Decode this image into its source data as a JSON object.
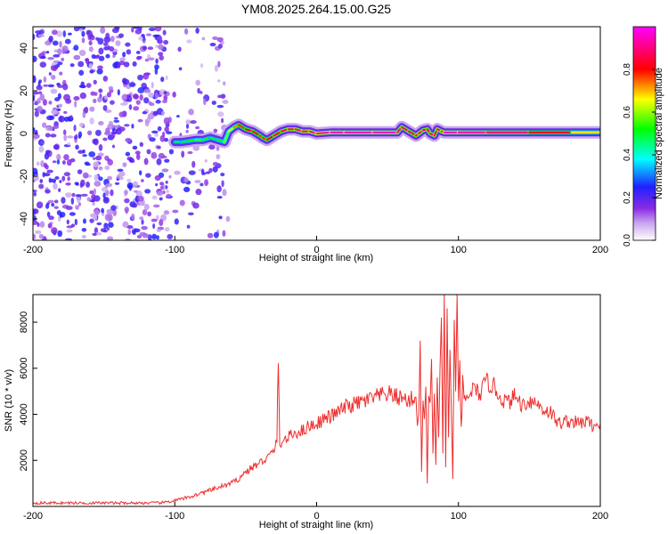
{
  "title": "YM08.2025.264.15.00.G25",
  "chart_data": [
    {
      "type": "heatmap",
      "xlabel": "Height of straight line (km)",
      "ylabel": "Frequency (Hz)",
      "xlim": [
        -200,
        200
      ],
      "ylim": [
        -50,
        50
      ],
      "xticks": [
        -200,
        -100,
        0,
        100,
        200
      ],
      "yticks": [
        -40,
        -20,
        0,
        20,
        40
      ],
      "grid": false,
      "colorbar": {
        "label": "Normalized spectral amplitude",
        "range": [
          0,
          1
        ],
        "ticks": [
          0.0,
          0.2,
          0.4,
          0.6,
          0.8
        ],
        "colormap": [
          "#ffffff",
          "#8a2be2",
          "#0000ff",
          "#00ffff",
          "#00ff00",
          "#ffff00",
          "#ff0000",
          "#ff00ff"
        ]
      },
      "ridge": {
        "x": [
          -100,
          -95,
          -90,
          -85,
          -80,
          -75,
          -70,
          -65,
          -62,
          -58,
          -55,
          -50,
          -45,
          -40,
          -38,
          -35,
          -30,
          -25,
          -20,
          -15,
          -10,
          -5,
          0,
          10,
          20,
          40,
          57,
          60,
          65,
          70,
          72,
          75,
          78,
          80,
          83,
          85,
          88,
          90,
          100,
          120,
          150,
          180,
          200
        ],
        "y": [
          -4,
          -4,
          -3.5,
          -3,
          -3,
          -2,
          -3,
          -4,
          1,
          3,
          4,
          2,
          1,
          -1,
          -2,
          -3,
          -1,
          1,
          2,
          2,
          1,
          1,
          0,
          0.5,
          0.5,
          0.5,
          0.5,
          3,
          1,
          -1,
          0,
          1.5,
          2,
          0,
          -1,
          2,
          1,
          0.5,
          0.5,
          0.5,
          0.5,
          0.5,
          0.5
        ],
        "amplitude": [
          0.45,
          0.5,
          0.5,
          0.55,
          0.55,
          0.5,
          0.5,
          0.55,
          0.6,
          0.7,
          0.75,
          0.8,
          0.85,
          0.8,
          0.75,
          0.8,
          0.85,
          0.85,
          0.9,
          0.9,
          0.9,
          0.92,
          0.95,
          0.95,
          0.95,
          0.95,
          0.95,
          0.85,
          0.9,
          0.85,
          0.9,
          0.9,
          0.85,
          0.9,
          0.85,
          0.9,
          0.9,
          0.95,
          0.95,
          0.9,
          0.85,
          0.75,
          0.6
        ]
      },
      "noise_region": {
        "x_range": [
          -200,
          -62
        ],
        "amplitude": 0.2
      }
    },
    {
      "type": "line",
      "xlabel": "Height of straight line (km)",
      "ylabel": "SNR (10 * v/v)",
      "xlim": [
        -200,
        200
      ],
      "ylim": [
        0,
        9200
      ],
      "xticks": [
        -200,
        -100,
        0,
        100,
        200
      ],
      "yticks": [
        2000,
        4000,
        6000,
        8000
      ],
      "grid": false,
      "series": [
        {
          "color": "#ee2e2e",
          "x": [
            -200,
            -150,
            -110,
            -100,
            -90,
            -80,
            -70,
            -60,
            -55,
            -50,
            -45,
            -40,
            -35,
            -30,
            -28,
            -27,
            -26,
            -25,
            -22,
            -20,
            -15,
            -10,
            -5,
            0,
            5,
            10,
            15,
            20,
            25,
            30,
            35,
            40,
            45,
            50,
            55,
            60,
            65,
            68,
            70,
            71,
            72,
            73,
            74,
            75,
            76,
            77,
            78,
            79,
            80,
            81,
            82,
            83,
            84,
            85,
            86,
            87,
            88,
            89,
            90,
            91,
            92,
            93,
            94,
            95,
            96,
            97,
            98,
            99,
            100,
            101,
            102,
            103,
            104,
            105,
            106,
            108,
            110,
            115,
            120,
            125,
            130,
            135,
            140,
            145,
            150,
            155,
            160,
            165,
            170,
            175,
            180,
            185,
            190,
            195,
            200
          ],
          "y": [
            150,
            150,
            150,
            250,
            400,
            600,
            800,
            1000,
            1200,
            1500,
            1700,
            1900,
            2100,
            2400,
            3000,
            6300,
            2500,
            2800,
            2900,
            3000,
            3200,
            3300,
            3500,
            3600,
            3800,
            3900,
            4100,
            4300,
            4400,
            4500,
            4600,
            4700,
            4800,
            4900,
            4800,
            4700,
            4600,
            4700,
            4700,
            3500,
            4000,
            7200,
            1500,
            4600,
            3800,
            5200,
            1000,
            4800,
            4500,
            6400,
            2300,
            4900,
            1800,
            5600,
            3000,
            6000,
            8200,
            2300,
            9200,
            1700,
            8600,
            3000,
            6800,
            4100,
            1200,
            8100,
            5000,
            9200,
            4300,
            6000,
            3200,
            5300,
            4600,
            4700,
            4600,
            4900,
            5100,
            4900,
            5400,
            5200,
            4700,
            4500,
            4800,
            4400,
            4600,
            4500,
            4200,
            4100,
            3600,
            3700,
            3700,
            3600,
            3700,
            3500,
            3600
          ]
        }
      ]
    }
  ]
}
